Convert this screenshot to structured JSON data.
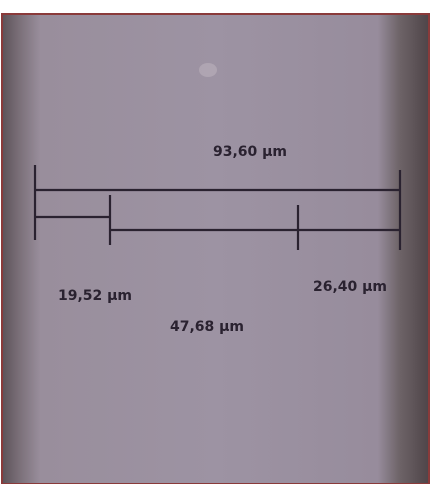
{
  "image": {
    "measurements": [
      {
        "label": "93,60 µm"
      },
      {
        "label": "19,52 µm"
      },
      {
        "label": "47,68 µm"
      },
      {
        "label": "26,40 µm"
      }
    ]
  }
}
